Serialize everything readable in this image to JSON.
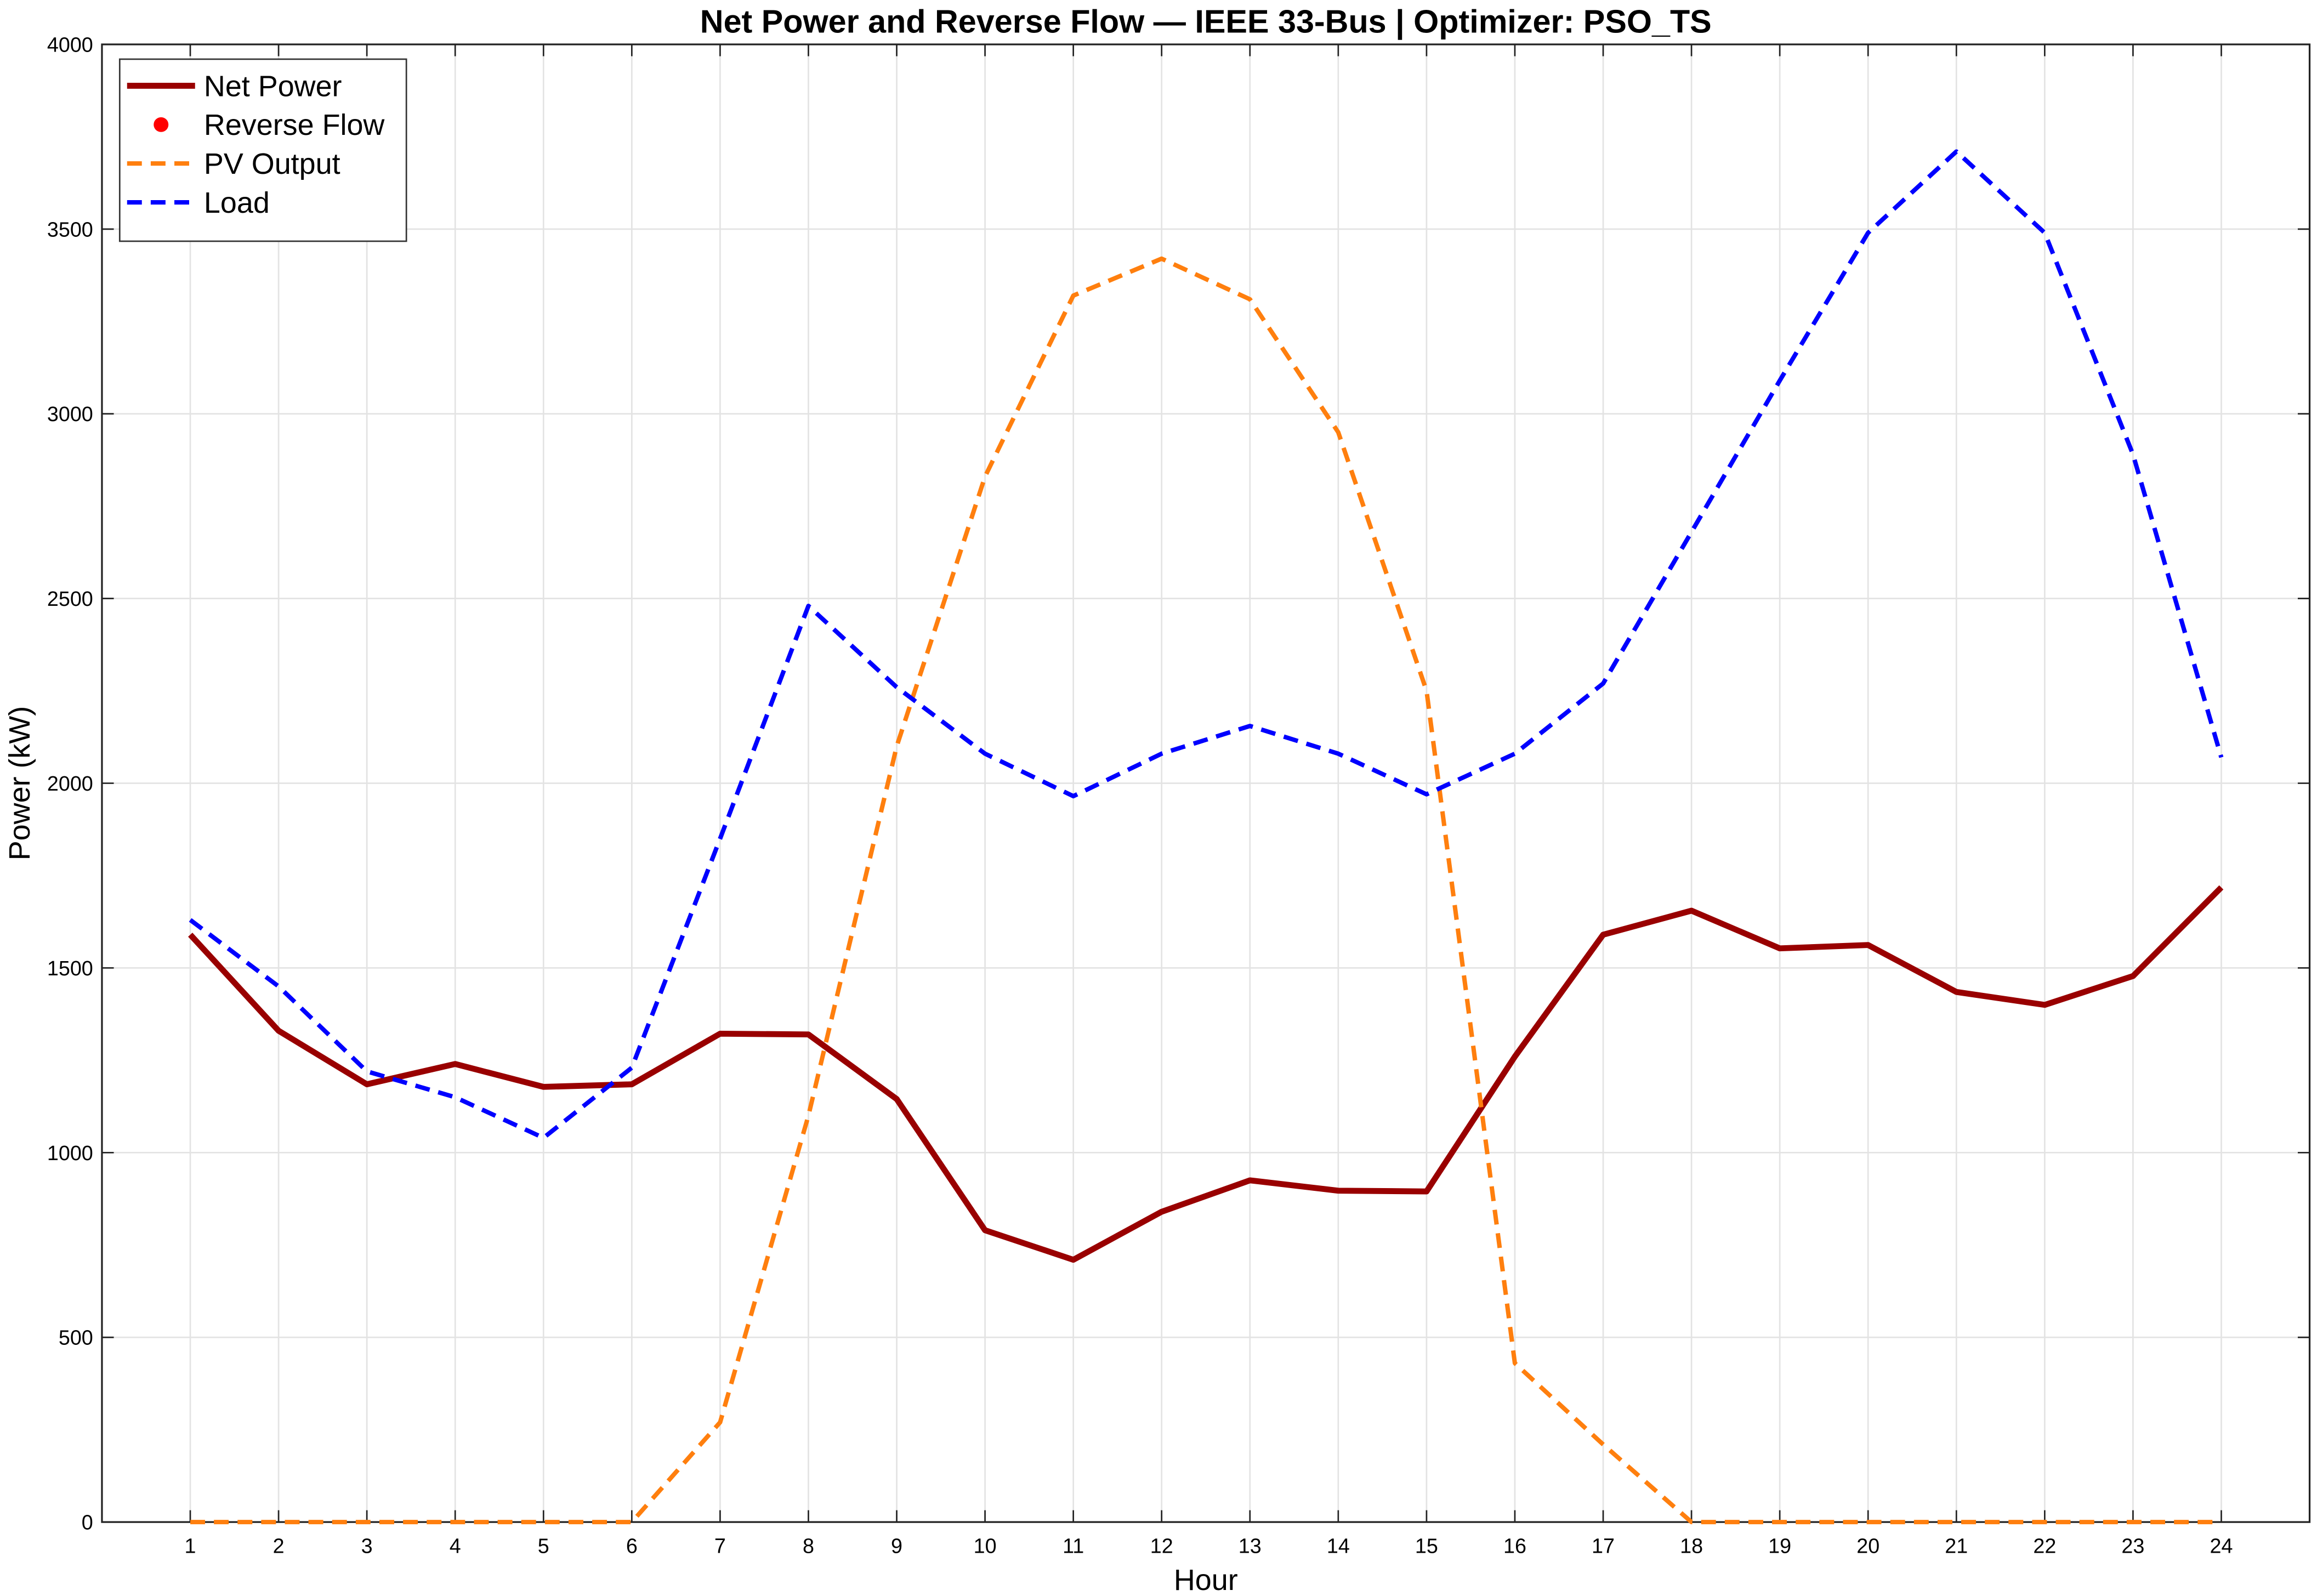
{
  "chart_data": {
    "type": "line",
    "title": "Net Power and Reverse Flow — IEEE 33-Bus | Optimizer: PSO_TS",
    "x_label": "Hour",
    "y_label": "Power (kW)",
    "x": [
      1,
      2,
      3,
      4,
      5,
      6,
      7,
      8,
      9,
      10,
      11,
      12,
      13,
      14,
      15,
      16,
      17,
      18,
      19,
      20,
      21,
      22,
      23,
      24
    ],
    "series": [
      {
        "name": "Net Power",
        "color": "#990000",
        "line_style": "solid",
        "values": [
          1590,
          1330,
          1185,
          1240,
          1178,
          1185,
          1322,
          1320,
          1145,
          790,
          710,
          840,
          925,
          897,
          895,
          1260,
          1590,
          1655,
          1553,
          1562,
          1435,
          1400,
          1478,
          1718
        ]
      },
      {
        "name": "Reverse Flow",
        "color": "#ff0000",
        "line_style": "none",
        "marker": "circle",
        "values": [
          null,
          null,
          null,
          null,
          null,
          null,
          null,
          null,
          null,
          null,
          null,
          null,
          null,
          null,
          null,
          null,
          null,
          null,
          null,
          null,
          null,
          null,
          null,
          null
        ]
      },
      {
        "name": "PV Output",
        "color": "#ff7f0e",
        "line_style": "dashed",
        "values": [
          0,
          0,
          0,
          0,
          0,
          0,
          270,
          1100,
          2100,
          2830,
          3320,
          3420,
          3310,
          2950,
          2250,
          430,
          210,
          0,
          0,
          0,
          0,
          0,
          0,
          0
        ]
      },
      {
        "name": "Load",
        "color": "#0000ff",
        "line_style": "dashed",
        "values": [
          1630,
          1450,
          1220,
          1150,
          1040,
          1230,
          1850,
          2480,
          2260,
          2080,
          1965,
          2080,
          2155,
          2080,
          1970,
          2080,
          2270,
          2680,
          3090,
          3490,
          3710,
          3490,
          2890,
          2070
        ]
      }
    ],
    "xlim": [
      0,
      25
    ],
    "xticks": [
      1,
      2,
      3,
      4,
      5,
      6,
      7,
      8,
      9,
      10,
      11,
      12,
      13,
      14,
      15,
      16,
      17,
      18,
      19,
      20,
      21,
      22,
      23,
      24
    ],
    "ylim": [
      0,
      4000
    ],
    "yticks": [
      0,
      500,
      1000,
      1500,
      2000,
      2500,
      3000,
      3500,
      4000
    ],
    "grid": true,
    "legend": "upper left"
  }
}
